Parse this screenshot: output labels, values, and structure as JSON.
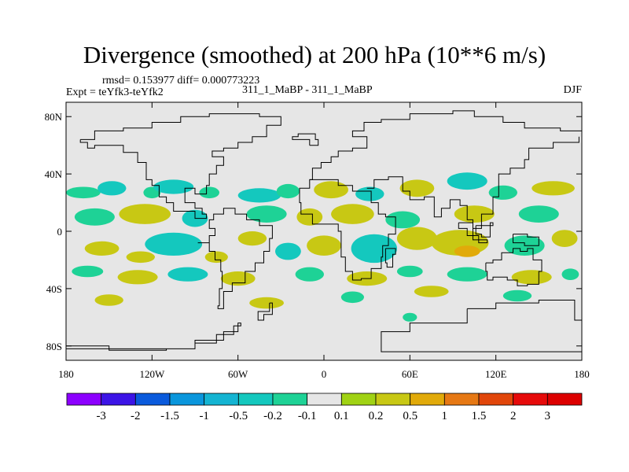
{
  "title": "Divergence (smoothed) at 200 hPa (10**6 m/s)",
  "stats_line": "rmsd= 0.153977 diff= 0.000773223",
  "experiment_label": "Expt = teYfk3-teYfk2",
  "case_label": "311_1_MaBP - 311_1_MaBP",
  "season_label": "DJF",
  "chart_data": {
    "type": "heatmap",
    "title": "Divergence (smoothed) at 200 hPa (10**6 m/s)",
    "x_range": [
      -180,
      180
    ],
    "y_range": [
      -90,
      90
    ],
    "x_ticks": [
      {
        "value": -180,
        "label": "180"
      },
      {
        "value": -120,
        "label": "120W"
      },
      {
        "value": -60,
        "label": "60W"
      },
      {
        "value": 0,
        "label": "0"
      },
      {
        "value": 60,
        "label": "60E"
      },
      {
        "value": 120,
        "label": "120E"
      },
      {
        "value": 180,
        "label": "180"
      }
    ],
    "y_ticks": [
      {
        "value": 80,
        "label": "80N"
      },
      {
        "value": 40,
        "label": "40N"
      },
      {
        "value": 0,
        "label": "0"
      },
      {
        "value": -40,
        "label": "40S"
      },
      {
        "value": -80,
        "label": "80S"
      }
    ],
    "colorbar": {
      "labels": [
        "-3",
        "-2",
        "-1.5",
        "-1",
        "-0.5",
        "-0.2",
        "-0.1",
        "0.1",
        "0.2",
        "0.5",
        "1",
        "1.5",
        "2",
        "3"
      ],
      "colors": [
        "#8c00ff",
        "#3c14e6",
        "#0a5adc",
        "#0a96dc",
        "#14b4d2",
        "#14c8be",
        "#1ed296",
        "#e6e6e6",
        "#a0d214",
        "#c8c814",
        "#e1aa0a",
        "#e67814",
        "#e1460a",
        "#e60a0a",
        "#dc0000"
      ]
    },
    "blobs": [
      {
        "lon": -168,
        "lat": 27,
        "rx": 12,
        "ry": 4,
        "level": "-0.1"
      },
      {
        "lon": -148,
        "lat": 30,
        "rx": 10,
        "ry": 5,
        "level": "-0.2"
      },
      {
        "lon": -120,
        "lat": 27,
        "rx": 6,
        "ry": 4,
        "level": "-0.1"
      },
      {
        "lon": -105,
        "lat": 31,
        "rx": 14,
        "ry": 5,
        "level": "-0.2"
      },
      {
        "lon": -80,
        "lat": 27,
        "rx": 7,
        "ry": 4,
        "level": "-0.1"
      },
      {
        "lon": -45,
        "lat": 25,
        "rx": 15,
        "ry": 5,
        "level": "-0.2"
      },
      {
        "lon": -25,
        "lat": 28,
        "rx": 8,
        "ry": 5,
        "level": "-0.1"
      },
      {
        "lon": 5,
        "lat": 29,
        "rx": 12,
        "ry": 6,
        "level": "0.2"
      },
      {
        "lon": 32,
        "lat": 26,
        "rx": 10,
        "ry": 5,
        "level": "-0.2"
      },
      {
        "lon": 65,
        "lat": 30,
        "rx": 12,
        "ry": 6,
        "level": "0.2"
      },
      {
        "lon": 100,
        "lat": 35,
        "rx": 14,
        "ry": 6,
        "level": "-0.2"
      },
      {
        "lon": 125,
        "lat": 27,
        "rx": 10,
        "ry": 5,
        "level": "-0.1"
      },
      {
        "lon": 160,
        "lat": 30,
        "rx": 15,
        "ry": 5,
        "level": "0.2"
      },
      {
        "lon": -160,
        "lat": 10,
        "rx": 14,
        "ry": 6,
        "level": "-0.1"
      },
      {
        "lon": -125,
        "lat": 12,
        "rx": 18,
        "ry": 7,
        "level": "0.2"
      },
      {
        "lon": -90,
        "lat": 9,
        "rx": 9,
        "ry": 6,
        "level": "-0.2"
      },
      {
        "lon": -40,
        "lat": 12,
        "rx": 14,
        "ry": 6,
        "level": "-0.1"
      },
      {
        "lon": -10,
        "lat": 10,
        "rx": 9,
        "ry": 6,
        "level": "0.2"
      },
      {
        "lon": 20,
        "lat": 12,
        "rx": 15,
        "ry": 7,
        "level": "0.2"
      },
      {
        "lon": 55,
        "lat": 8,
        "rx": 12,
        "ry": 6,
        "level": "-0.1"
      },
      {
        "lon": 105,
        "lat": 12,
        "rx": 14,
        "ry": 6,
        "level": "0.2"
      },
      {
        "lon": 150,
        "lat": 12,
        "rx": 14,
        "ry": 6,
        "level": "-0.1"
      },
      {
        "lon": -155,
        "lat": -12,
        "rx": 12,
        "ry": 5,
        "level": "0.2"
      },
      {
        "lon": -128,
        "lat": -18,
        "rx": 10,
        "ry": 4,
        "level": "0.2"
      },
      {
        "lon": -105,
        "lat": -9,
        "rx": 20,
        "ry": 8,
        "level": "-0.2"
      },
      {
        "lon": -75,
        "lat": -18,
        "rx": 8,
        "ry": 4,
        "level": "0.2"
      },
      {
        "lon": -50,
        "lat": -5,
        "rx": 10,
        "ry": 5,
        "level": "0.2"
      },
      {
        "lon": -25,
        "lat": -14,
        "rx": 9,
        "ry": 6,
        "level": "-0.2"
      },
      {
        "lon": 0,
        "lat": -10,
        "rx": 12,
        "ry": 7,
        "level": "0.2"
      },
      {
        "lon": 35,
        "lat": -12,
        "rx": 16,
        "ry": 10,
        "level": "-0.2"
      },
      {
        "lon": 65,
        "lat": -5,
        "rx": 14,
        "ry": 8,
        "level": "0.2"
      },
      {
        "lon": 95,
        "lat": -8,
        "rx": 20,
        "ry": 9,
        "level": "0.2"
      },
      {
        "lon": 100,
        "lat": -14,
        "rx": 9,
        "ry": 4,
        "level": "0.5"
      },
      {
        "lon": 140,
        "lat": -10,
        "rx": 14,
        "ry": 7,
        "level": "-0.1"
      },
      {
        "lon": 168,
        "lat": -5,
        "rx": 9,
        "ry": 6,
        "level": "0.2"
      },
      {
        "lon": -165,
        "lat": -28,
        "rx": 11,
        "ry": 4,
        "level": "-0.1"
      },
      {
        "lon": -130,
        "lat": -32,
        "rx": 14,
        "ry": 5,
        "level": "0.2"
      },
      {
        "lon": -95,
        "lat": -30,
        "rx": 14,
        "ry": 5,
        "level": "-0.2"
      },
      {
        "lon": -60,
        "lat": -33,
        "rx": 12,
        "ry": 5,
        "level": "0.2"
      },
      {
        "lon": -10,
        "lat": -30,
        "rx": 10,
        "ry": 5,
        "level": "-0.1"
      },
      {
        "lon": 30,
        "lat": -33,
        "rx": 14,
        "ry": 5,
        "level": "0.2"
      },
      {
        "lon": 60,
        "lat": -28,
        "rx": 9,
        "ry": 4,
        "level": "-0.1"
      },
      {
        "lon": 100,
        "lat": -30,
        "rx": 14,
        "ry": 5,
        "level": "-0.1"
      },
      {
        "lon": 145,
        "lat": -32,
        "rx": 14,
        "ry": 5,
        "level": "0.2"
      },
      {
        "lon": 172,
        "lat": -30,
        "rx": 6,
        "ry": 4,
        "level": "-0.1"
      },
      {
        "lon": -150,
        "lat": -48,
        "rx": 10,
        "ry": 4,
        "level": "0.2"
      },
      {
        "lon": -40,
        "lat": -50,
        "rx": 12,
        "ry": 4,
        "level": "0.2"
      },
      {
        "lon": 20,
        "lat": -46,
        "rx": 8,
        "ry": 4,
        "level": "-0.1"
      },
      {
        "lon": 75,
        "lat": -42,
        "rx": 12,
        "ry": 4,
        "level": "0.2"
      },
      {
        "lon": 135,
        "lat": -45,
        "rx": 10,
        "ry": 4,
        "level": "-0.1"
      },
      {
        "lon": 60,
        "lat": -60,
        "rx": 5,
        "ry": 3,
        "level": "-0.1"
      }
    ]
  }
}
